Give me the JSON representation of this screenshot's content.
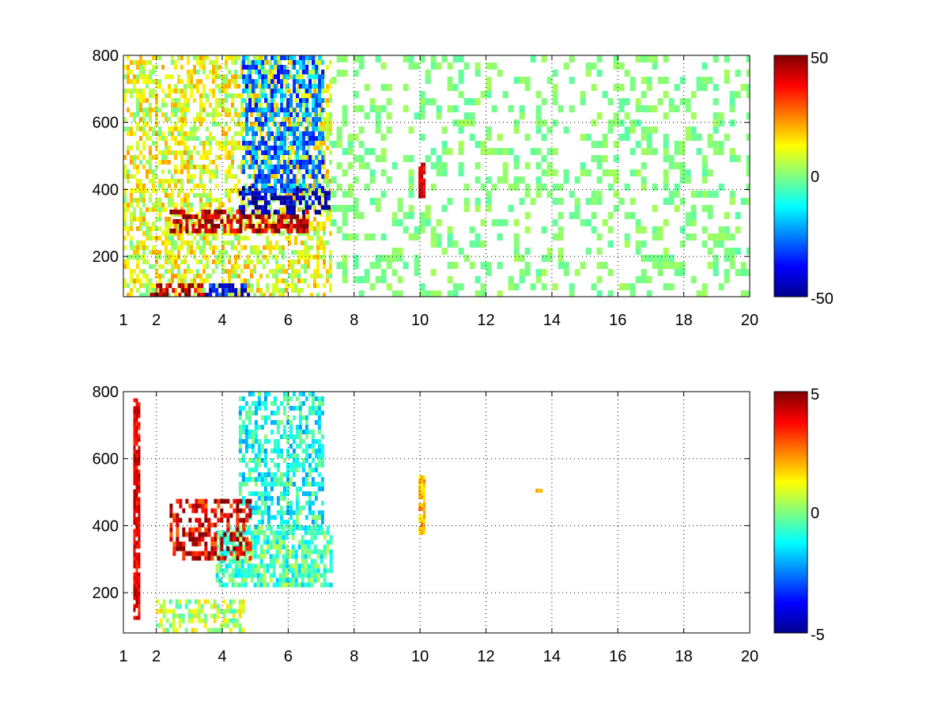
{
  "colors": {
    "background": "#ffffff",
    "axis": "#000000",
    "grid": "#000000",
    "colormap": "jet"
  },
  "chart_data": [
    {
      "type": "heatmap",
      "title": "",
      "xlabel": "",
      "ylabel": "",
      "xlim": [
        1,
        20
      ],
      "ylim": [
        80,
        800
      ],
      "x_ticks": [
        1,
        2,
        4,
        6,
        8,
        10,
        12,
        14,
        16,
        18,
        20
      ],
      "x_tick_labels": [
        "1",
        "2",
        "4",
        "6",
        "8",
        "10",
        "12",
        "14",
        "16",
        "18",
        "20"
      ],
      "y_ticks": [
        200,
        400,
        600,
        800
      ],
      "y_tick_labels": [
        "200",
        "400",
        "600",
        "800"
      ],
      "grid": true,
      "colorbar": {
        "min": -50,
        "max": 50,
        "tick_labels": [
          "50",
          "0",
          "-50"
        ],
        "colormap": "jet"
      },
      "features": [
        {
          "desc": "broadband noise columns",
          "x_range": [
            1,
            7.3
          ],
          "y_range": [
            80,
            800
          ],
          "value": 10
        },
        {
          "desc": "strong positive band",
          "x_range": [
            2.4,
            6.6
          ],
          "y_range": [
            280,
            340
          ],
          "value": 45
        },
        {
          "desc": "strong negative band",
          "x_range": [
            4.5,
            7.2
          ],
          "y_range": [
            330,
            410
          ],
          "value": -45
        },
        {
          "desc": "upper negative region",
          "x_range": [
            4.6,
            7.0
          ],
          "y_range": [
            400,
            800
          ],
          "value": -25
        },
        {
          "desc": "low frequency positive strip",
          "x_range": [
            1.8,
            3.5
          ],
          "y_range": [
            80,
            120
          ],
          "value": 45
        },
        {
          "desc": "low frequency negative strip",
          "x_range": [
            3.5,
            4.8
          ],
          "y_range": [
            80,
            120
          ],
          "value": -35
        },
        {
          "desc": "sparse speckle",
          "x_range": [
            7.3,
            20
          ],
          "y_range": [
            80,
            800
          ],
          "value": 0
        },
        {
          "desc": "vertical line near 10",
          "x_range": [
            9.95,
            10.1
          ],
          "y_range": [
            380,
            480
          ],
          "value": 40
        }
      ]
    },
    {
      "type": "heatmap",
      "title": "",
      "xlabel": "",
      "ylabel": "",
      "xlim": [
        1,
        20
      ],
      "ylim": [
        80,
        800
      ],
      "x_ticks": [
        1,
        2,
        4,
        6,
        8,
        10,
        12,
        14,
        16,
        18,
        20
      ],
      "x_tick_labels": [
        "1",
        "2",
        "4",
        "6",
        "8",
        "10",
        "12",
        "14",
        "16",
        "18",
        "20"
      ],
      "y_ticks": [
        200,
        400,
        600,
        800
      ],
      "y_tick_labels": [
        "200",
        "400",
        "600",
        "800"
      ],
      "grid": true,
      "colorbar": {
        "min": -5,
        "max": 5,
        "tick_labels": [
          "5",
          "0",
          "-5"
        ],
        "colormap": "jet"
      },
      "features": [
        {
          "desc": "main curved band",
          "x_range": [
            3.8,
            7.3
          ],
          "y_range": [
            230,
            400
          ],
          "value": -0.5
        },
        {
          "desc": "upper region",
          "x_range": [
            4.5,
            7.0
          ],
          "y_range": [
            400,
            800
          ],
          "value": -1
        },
        {
          "desc": "positive cluster",
          "x_range": [
            2.4,
            4.8
          ],
          "y_range": [
            300,
            480
          ],
          "value": 4
        },
        {
          "desc": "low frequency strip",
          "x_range": [
            2.0,
            4.6
          ],
          "y_range": [
            90,
            180
          ],
          "value": 0.5
        },
        {
          "desc": "thin vertical line near 1.4",
          "x_range": [
            1.3,
            1.5
          ],
          "y_range": [
            120,
            780
          ],
          "value": 4
        },
        {
          "desc": "vertical line near 10",
          "x_range": [
            9.95,
            10.1
          ],
          "y_range": [
            380,
            550
          ],
          "value": 2
        },
        {
          "desc": "small dot near 13.6",
          "x_range": [
            13.5,
            13.7
          ],
          "y_range": [
            500,
            510
          ],
          "value": 2
        }
      ]
    }
  ]
}
